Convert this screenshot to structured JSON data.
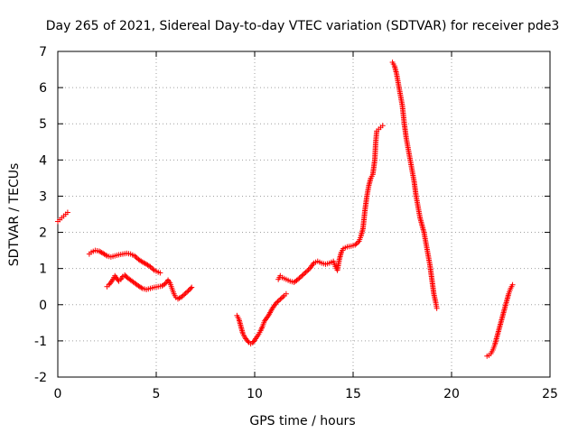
{
  "chart_data": {
    "type": "scatter",
    "title": "Day 265 of 2021, Sidereal Day-to-day VTEC variation (SDTVAR) for receiver pde3",
    "xlabel": "GPS time / hours",
    "ylabel": "SDTVAR / TECUs",
    "xlim": [
      0,
      25
    ],
    "ylim": [
      -2,
      7
    ],
    "xticks": [
      0,
      5,
      10,
      15,
      20,
      25
    ],
    "yticks": [
      -2,
      -1,
      0,
      1,
      2,
      3,
      4,
      5,
      6,
      7
    ],
    "grid": true,
    "marker": "+",
    "marker_color": "#ff0000",
    "segments": [
      [
        [
          0.0,
          2.3
        ],
        [
          0.1,
          2.35
        ],
        [
          0.2,
          2.4
        ],
        [
          0.3,
          2.45
        ],
        [
          0.4,
          2.5
        ],
        [
          0.5,
          2.55
        ]
      ],
      [
        [
          1.6,
          1.4
        ],
        [
          1.7,
          1.45
        ],
        [
          1.9,
          1.5
        ],
        [
          2.1,
          1.48
        ],
        [
          2.3,
          1.42
        ],
        [
          2.5,
          1.35
        ],
        [
          2.7,
          1.32
        ],
        [
          2.9,
          1.35
        ],
        [
          3.1,
          1.38
        ],
        [
          3.3,
          1.4
        ],
        [
          3.5,
          1.42
        ],
        [
          3.7,
          1.4
        ],
        [
          3.9,
          1.35
        ],
        [
          4.1,
          1.25
        ],
        [
          4.3,
          1.18
        ],
        [
          4.5,
          1.12
        ],
        [
          4.7,
          1.05
        ],
        [
          4.9,
          0.95
        ],
        [
          5.1,
          0.9
        ],
        [
          5.2,
          0.88
        ]
      ],
      [
        [
          2.5,
          0.5
        ],
        [
          2.6,
          0.55
        ],
        [
          2.7,
          0.62
        ],
        [
          2.8,
          0.7
        ],
        [
          2.9,
          0.8
        ],
        [
          3.0,
          0.72
        ],
        [
          3.1,
          0.65
        ],
        [
          3.2,
          0.7
        ],
        [
          3.3,
          0.78
        ],
        [
          3.4,
          0.82
        ],
        [
          3.5,
          0.76
        ],
        [
          3.7,
          0.68
        ],
        [
          3.9,
          0.6
        ],
        [
          4.1,
          0.52
        ],
        [
          4.3,
          0.45
        ],
        [
          4.5,
          0.42
        ],
        [
          4.7,
          0.45
        ],
        [
          4.9,
          0.48
        ],
        [
          5.1,
          0.5
        ],
        [
          5.3,
          0.52
        ],
        [
          5.5,
          0.6
        ],
        [
          5.6,
          0.68
        ],
        [
          5.7,
          0.6
        ],
        [
          5.8,
          0.45
        ],
        [
          5.9,
          0.3
        ],
        [
          6.0,
          0.2
        ],
        [
          6.1,
          0.16
        ],
        [
          6.3,
          0.22
        ],
        [
          6.5,
          0.32
        ],
        [
          6.7,
          0.42
        ],
        [
          6.8,
          0.48
        ]
      ],
      [
        [
          9.1,
          -0.3
        ],
        [
          9.2,
          -0.4
        ],
        [
          9.3,
          -0.6
        ],
        [
          9.4,
          -0.8
        ],
        [
          9.5,
          -0.9
        ],
        [
          9.6,
          -0.98
        ],
        [
          9.7,
          -1.04
        ],
        [
          9.8,
          -1.08
        ],
        [
          9.9,
          -1.05
        ],
        [
          10.0,
          -0.98
        ],
        [
          10.1,
          -0.9
        ],
        [
          10.2,
          -0.82
        ],
        [
          10.3,
          -0.72
        ],
        [
          10.4,
          -0.6
        ],
        [
          10.5,
          -0.45
        ],
        [
          10.7,
          -0.3
        ],
        [
          10.9,
          -0.1
        ],
        [
          11.1,
          0.05
        ],
        [
          11.3,
          0.15
        ],
        [
          11.5,
          0.25
        ],
        [
          11.6,
          0.3
        ]
      ],
      [
        [
          11.2,
          0.7
        ],
        [
          11.3,
          0.8
        ],
        [
          11.4,
          0.75
        ],
        [
          11.6,
          0.7
        ],
        [
          11.8,
          0.65
        ],
        [
          12.0,
          0.62
        ],
        [
          12.2,
          0.7
        ],
        [
          12.4,
          0.8
        ],
        [
          12.6,
          0.9
        ],
        [
          12.8,
          1.0
        ],
        [
          13.0,
          1.15
        ],
        [
          13.2,
          1.2
        ],
        [
          13.4,
          1.15
        ],
        [
          13.6,
          1.12
        ],
        [
          13.8,
          1.15
        ],
        [
          14.0,
          1.2
        ],
        [
          14.1,
          1.05
        ],
        [
          14.2,
          0.95
        ],
        [
          14.3,
          1.25
        ],
        [
          14.4,
          1.45
        ],
        [
          14.5,
          1.55
        ],
        [
          14.7,
          1.6
        ],
        [
          14.9,
          1.62
        ],
        [
          15.1,
          1.65
        ],
        [
          15.3,
          1.75
        ],
        [
          15.4,
          1.9
        ],
        [
          15.5,
          2.1
        ],
        [
          15.6,
          2.6
        ],
        [
          15.7,
          3.0
        ],
        [
          15.8,
          3.3
        ],
        [
          15.9,
          3.5
        ],
        [
          16.0,
          3.6
        ],
        [
          16.1,
          4.0
        ],
        [
          16.15,
          4.5
        ],
        [
          16.2,
          4.8
        ],
        [
          16.3,
          4.85
        ],
        [
          16.4,
          4.9
        ],
        [
          16.5,
          4.95
        ]
      ],
      [
        [
          17.0,
          6.7
        ],
        [
          17.1,
          6.6
        ],
        [
          17.2,
          6.4
        ],
        [
          17.3,
          6.1
        ],
        [
          17.4,
          5.8
        ],
        [
          17.5,
          5.5
        ],
        [
          17.6,
          5.0
        ],
        [
          17.7,
          4.6
        ],
        [
          17.8,
          4.3
        ],
        [
          17.9,
          4.0
        ],
        [
          18.0,
          3.7
        ],
        [
          18.1,
          3.4
        ],
        [
          18.2,
          3.0
        ],
        [
          18.3,
          2.7
        ],
        [
          18.4,
          2.4
        ],
        [
          18.5,
          2.2
        ],
        [
          18.6,
          2.0
        ],
        [
          18.7,
          1.7
        ],
        [
          18.8,
          1.4
        ],
        [
          18.9,
          1.1
        ],
        [
          19.0,
          0.7
        ],
        [
          19.1,
          0.3
        ],
        [
          19.2,
          0.05
        ],
        [
          19.25,
          -0.1
        ]
      ],
      [
        [
          21.8,
          -1.42
        ],
        [
          21.9,
          -1.4
        ],
        [
          22.0,
          -1.35
        ],
        [
          22.1,
          -1.25
        ],
        [
          22.2,
          -1.1
        ],
        [
          22.3,
          -0.9
        ],
        [
          22.4,
          -0.7
        ],
        [
          22.5,
          -0.5
        ],
        [
          22.6,
          -0.3
        ],
        [
          22.7,
          -0.1
        ],
        [
          22.8,
          0.1
        ],
        [
          22.9,
          0.3
        ],
        [
          23.0,
          0.45
        ],
        [
          23.1,
          0.55
        ]
      ]
    ]
  }
}
